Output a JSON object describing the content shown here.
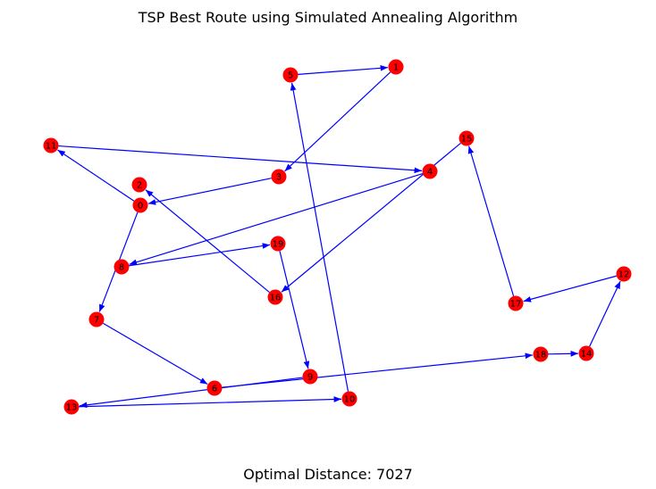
{
  "title": "TSP Best Route using Simulated Annealing Algorithm",
  "footer": "Optimal Distance: 7027",
  "colors": {
    "node": "#ff0000",
    "edge": "#0000ff",
    "label": "#000000"
  },
  "nodes": [
    {
      "id": "0",
      "label": "0"
    },
    {
      "id": "1",
      "label": "1"
    },
    {
      "id": "2",
      "label": "2"
    },
    {
      "id": "3",
      "label": "3"
    },
    {
      "id": "4",
      "label": "4"
    },
    {
      "id": "5",
      "label": "5"
    },
    {
      "id": "6",
      "label": "6"
    },
    {
      "id": "7",
      "label": "7"
    },
    {
      "id": "8",
      "label": "8"
    },
    {
      "id": "9",
      "label": "9"
    },
    {
      "id": "10",
      "label": "10"
    },
    {
      "id": "11",
      "label": "11"
    },
    {
      "id": "12",
      "label": "12"
    },
    {
      "id": "13",
      "label": "13"
    },
    {
      "id": "14",
      "label": "14"
    },
    {
      "id": "15",
      "label": "15"
    },
    {
      "id": "16",
      "label": "16"
    },
    {
      "id": "17",
      "label": "17"
    },
    {
      "id": "18",
      "label": "18"
    },
    {
      "id": "19",
      "label": "19"
    }
  ],
  "route_edges": [
    [
      "0",
      "11"
    ],
    [
      "11",
      "4"
    ],
    [
      "4",
      "8"
    ],
    [
      "8",
      "19"
    ],
    [
      "19",
      "9"
    ],
    [
      "9",
      "13"
    ],
    [
      "13",
      "10"
    ],
    [
      "10",
      "5"
    ],
    [
      "5",
      "1"
    ],
    [
      "1",
      "3"
    ],
    [
      "3",
      "0"
    ],
    [
      "0",
      "7"
    ],
    [
      "7",
      "6"
    ],
    [
      "6",
      "18"
    ],
    [
      "18",
      "14"
    ],
    [
      "14",
      "12"
    ],
    [
      "12",
      "17"
    ],
    [
      "17",
      "15"
    ],
    [
      "15",
      "16"
    ],
    [
      "16",
      "2"
    ]
  ]
}
